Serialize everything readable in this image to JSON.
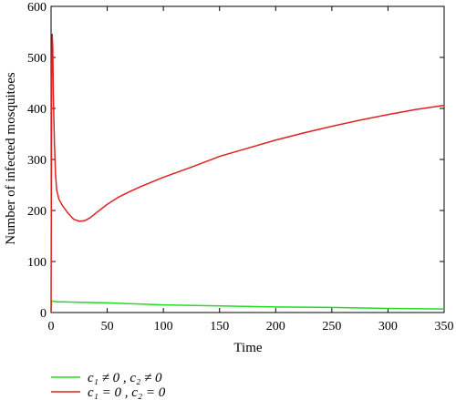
{
  "chart_data": {
    "type": "line",
    "xlabel": "Time",
    "ylabel": "Number of infected mosquitoes",
    "xlim": [
      0,
      350
    ],
    "ylim": [
      0,
      600
    ],
    "xticks": [
      0,
      50,
      100,
      150,
      200,
      250,
      300,
      350
    ],
    "yticks": [
      0,
      100,
      200,
      300,
      400,
      500,
      600
    ],
    "grid": false,
    "legend_position": "bottom-left",
    "series": [
      {
        "name": "c₁ ≠ 0 , c₂ ≠ 0",
        "color": "#22dd22",
        "x": [
          0,
          0.5,
          1,
          2,
          5,
          10,
          25,
          50,
          75,
          100,
          150,
          200,
          250,
          300,
          350
        ],
        "y": [
          0,
          22,
          23,
          22,
          21,
          21,
          20,
          19,
          17,
          15,
          13,
          11,
          10,
          8,
          7
        ]
      },
      {
        "name": "c₁ = 0 , c₂ = 0",
        "color": "#dd2222",
        "x": [
          0,
          0.5,
          1,
          1.5,
          2,
          3,
          4,
          5,
          7,
          10,
          15,
          20,
          25,
          30,
          35,
          40,
          50,
          60,
          70,
          80,
          100,
          125,
          150,
          175,
          200,
          225,
          250,
          275,
          300,
          325,
          350
        ],
        "y": [
          0,
          460,
          545,
          520,
          430,
          330,
          270,
          240,
          222,
          210,
          195,
          183,
          179,
          180,
          186,
          195,
          212,
          226,
          237,
          247,
          265,
          285,
          306,
          322,
          338,
          352,
          365,
          377,
          388,
          398,
          406
        ]
      }
    ]
  }
}
